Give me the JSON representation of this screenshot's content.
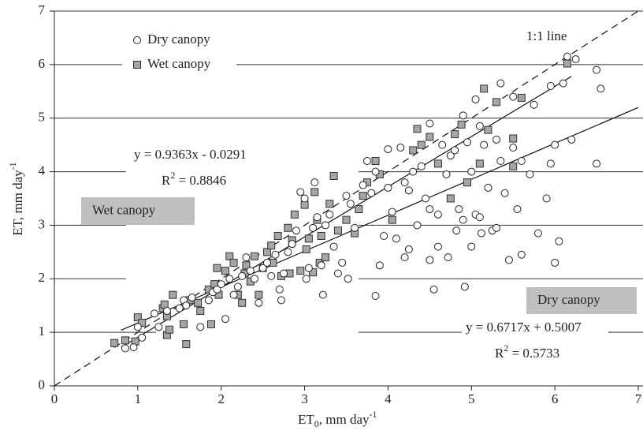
{
  "chart_data": {
    "type": "scatter",
    "xlim": [
      0,
      7
    ],
    "ylim": [
      0,
      7
    ],
    "xticks": [
      0,
      1,
      2,
      3,
      4,
      5,
      6,
      7
    ],
    "yticks": [
      0,
      1,
      2,
      3,
      4,
      5,
      6,
      7
    ],
    "grid": true,
    "legend": "upper left",
    "x_label": {
      "text": "ET",
      "sub": "0",
      "tail": ", mm day",
      "sup": "-1"
    },
    "y_label": {
      "text": "ET, mm day",
      "sup": "-1"
    },
    "series": [
      {
        "name": "Dry canopy",
        "marker": "circle",
        "color": "#ffffff",
        "x": [
          0.85,
          0.95,
          1.0,
          1.05,
          1.2,
          1.25,
          1.35,
          1.5,
          1.55,
          1.58,
          1.65,
          1.75,
          1.85,
          1.9,
          1.95,
          2.0,
          2.05,
          2.1,
          2.15,
          2.2,
          2.25,
          2.3,
          2.35,
          2.4,
          2.45,
          2.5,
          2.55,
          2.6,
          2.65,
          2.7,
          2.72,
          2.75,
          2.8,
          2.85,
          2.9,
          2.95,
          3.0,
          3.02,
          3.05,
          3.1,
          3.12,
          3.15,
          3.2,
          3.22,
          3.25,
          3.3,
          3.35,
          3.4,
          3.45,
          3.5,
          3.52,
          3.55,
          3.6,
          3.7,
          3.75,
          3.8,
          3.85,
          3.9,
          3.95,
          4.0,
          4.05,
          4.1,
          4.15,
          4.2,
          4.2,
          4.25,
          4.25,
          4.3,
          4.35,
          4.4,
          4.45,
          4.5,
          4.5,
          4.5,
          4.55,
          4.6,
          4.6,
          4.65,
          4.7,
          4.72,
          4.75,
          4.8,
          4.82,
          4.85,
          4.9,
          4.9,
          4.92,
          4.95,
          5.0,
          5.0,
          5.05,
          5.05,
          5.1,
          5.1,
          5.12,
          5.15,
          5.2,
          5.25,
          5.3,
          5.3,
          5.35,
          5.35,
          5.4,
          5.45,
          5.5,
          5.5,
          5.55,
          5.6,
          5.6,
          5.7,
          5.75,
          5.8,
          5.9,
          5.95,
          6.0,
          6.0,
          6.05,
          6.1,
          6.15,
          6.2,
          6.25,
          6.5,
          6.5,
          6.55,
          5.95,
          4.0,
          3.85
        ],
        "values": [
          0.7,
          0.72,
          1.1,
          0.9,
          1.35,
          1.1,
          1.4,
          1.45,
          1.6,
          1.5,
          1.65,
          1.1,
          1.6,
          1.75,
          1.8,
          1.9,
          1.25,
          2.0,
          1.7,
          1.85,
          2.05,
          2.4,
          2.15,
          2.0,
          1.55,
          2.2,
          2.3,
          2.05,
          2.45,
          1.8,
          1.6,
          2.1,
          2.5,
          2.65,
          2.9,
          3.62,
          3.5,
          2.0,
          2.2,
          2.95,
          3.8,
          3.15,
          2.25,
          1.7,
          3.0,
          3.2,
          2.6,
          2.1,
          2.3,
          3.55,
          2.0,
          3.4,
          2.95,
          3.75,
          4.2,
          3.6,
          1.68,
          2.25,
          2.8,
          4.42,
          3.25,
          2.75,
          4.45,
          3.8,
          2.4,
          3.65,
          2.55,
          4.0,
          3.0,
          4.1,
          3.5,
          4.9,
          3.3,
          2.35,
          1.8,
          3.2,
          2.6,
          4.5,
          3.95,
          2.4,
          4.3,
          4.4,
          2.9,
          3.3,
          5.05,
          3.1,
          1.85,
          4.55,
          4.0,
          2.6,
          5.35,
          3.2,
          4.85,
          3.15,
          2.85,
          4.5,
          3.7,
          2.9,
          4.6,
          2.95,
          5.65,
          4.2,
          3.6,
          2.35,
          5.4,
          4.45,
          3.3,
          4.2,
          2.45,
          3.95,
          5.25,
          2.85,
          3.5,
          5.6,
          4.5,
          2.3,
          2.7,
          5.65,
          6.15,
          4.6,
          6.1,
          5.9,
          4.15,
          5.55,
          4.15,
          3.7,
          4.0
        ]
      },
      {
        "name": "Wet canopy",
        "marker": "square",
        "color": "#a6a6a6",
        "x": [
          0.72,
          0.85,
          0.97,
          1.0,
          1.05,
          1.3,
          1.32,
          1.35,
          1.35,
          1.38,
          1.42,
          1.55,
          1.58,
          1.62,
          1.72,
          1.75,
          1.85,
          1.88,
          1.92,
          1.95,
          1.97,
          2.05,
          2.1,
          2.15,
          2.2,
          2.25,
          2.28,
          2.3,
          2.35,
          2.4,
          2.45,
          2.5,
          2.55,
          2.6,
          2.62,
          2.68,
          2.72,
          2.8,
          2.82,
          2.85,
          2.88,
          2.95,
          3.0,
          3.02,
          3.05,
          3.1,
          3.12,
          3.15,
          3.18,
          3.2,
          3.25,
          3.3,
          3.35,
          3.4,
          3.5,
          3.6,
          3.65,
          3.7,
          3.75,
          3.85,
          3.9,
          4.05,
          4.3,
          4.35,
          4.4,
          4.5,
          4.6,
          4.75,
          4.8,
          4.88,
          4.95,
          5.1,
          5.15,
          5.2,
          5.3,
          5.5,
          5.5,
          5.6,
          6.15
        ],
        "values": [
          0.8,
          0.85,
          0.83,
          1.28,
          1.18,
          1.45,
          1.52,
          1.3,
          0.95,
          1.05,
          1.7,
          1.15,
          0.78,
          1.6,
          1.55,
          1.4,
          1.8,
          1.15,
          1.9,
          2.2,
          1.7,
          2.15,
          2.42,
          2.3,
          1.7,
          1.55,
          2.1,
          2.25,
          1.95,
          2.42,
          1.7,
          2.2,
          2.5,
          2.62,
          2.3,
          2.8,
          2.05,
          2.95,
          2.1,
          2.72,
          3.2,
          2.15,
          3.38,
          2.55,
          2.75,
          2.12,
          3.62,
          3.1,
          2.3,
          2.8,
          2.4,
          3.4,
          3.92,
          2.9,
          3.1,
          2.85,
          3.3,
          3.55,
          3.8,
          4.2,
          3.95,
          3.1,
          4.4,
          4.8,
          4.5,
          4.65,
          4.15,
          3.5,
          4.7,
          4.88,
          3.8,
          4.15,
          5.55,
          4.78,
          5.3,
          4.1,
          4.62,
          5.38,
          6.02
        ]
      }
    ],
    "reference_line": {
      "label": "1:1 line",
      "x": [
        0,
        7
      ],
      "values": [
        0,
        7
      ]
    },
    "fit_lines": [
      {
        "x": [
          0.8,
          6.2
        ],
        "values": [
          0.72,
          5.78
        ]
      },
      {
        "x": [
          0.8,
          7
        ],
        "values": [
          1.04,
          5.2
        ]
      }
    ],
    "annotations": [
      {
        "text": "y = 0.9363x - 0.0291"
      },
      {
        "text": "R",
        "sup": "2",
        "tail": " = 0.8846"
      },
      {
        "text": "y = 0.6717x + 0.5007"
      },
      {
        "text": "R",
        "sup": "2",
        "tail": " = 0.5733"
      }
    ],
    "boxed_labels": [
      "Wet canopy",
      "Dry canopy"
    ]
  }
}
